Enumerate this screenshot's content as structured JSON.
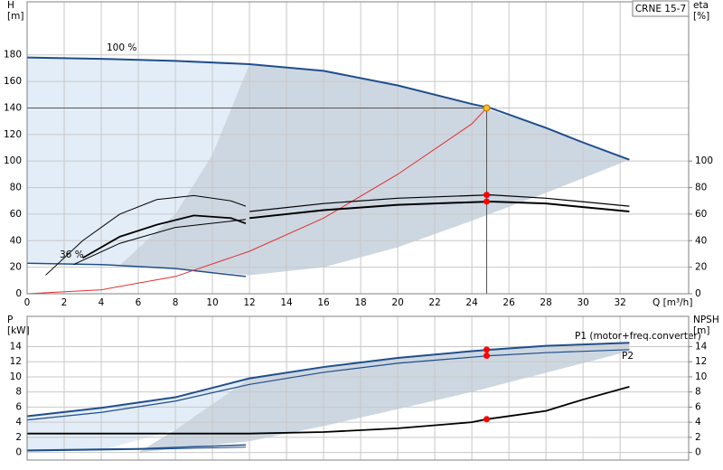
{
  "chart_data": [
    {
      "type": "line",
      "ylabel": [
        "H",
        "[m]"
      ],
      "y2label": [
        "eta",
        "[%]"
      ],
      "xlabel": "Q [m³/h]",
      "model": "CRNE 15-7",
      "xlim": [
        0,
        35.7
      ],
      "ylim": [
        0,
        220
      ],
      "y2lim": [
        0,
        220
      ],
      "xticks": [
        0,
        2,
        4,
        6,
        8,
        10,
        12,
        14,
        16,
        18,
        20,
        22,
        24,
        26,
        28,
        30,
        32
      ],
      "yticks": [
        0,
        20,
        40,
        60,
        80,
        100,
        120,
        140,
        160,
        180
      ],
      "y2ticks": [
        0,
        20,
        40,
        60,
        80,
        100
      ],
      "grid": true,
      "crosshair": true,
      "regions": [
        {
          "color": "#e3edf7",
          "x": [
            0,
            4,
            8,
            12,
            10,
            8,
            5,
            2,
            0
          ],
          "values": [
            178,
            177,
            175.5,
            173,
            105,
            60,
            21.5,
            23,
            23
          ]
        },
        {
          "color": "#cdd7e1",
          "x": [
            12,
            16,
            20,
            24,
            28,
            32.5,
            28,
            24,
            20,
            16,
            12,
            8,
            5,
            8,
            10,
            12
          ],
          "values": [
            173,
            168,
            157,
            143,
            125,
            101,
            76,
            55,
            35,
            20,
            14,
            19,
            21.5,
            60,
            105,
            173
          ]
        }
      ],
      "series": [
        {
          "name": "100 %",
          "color": "#1f4e8c",
          "width": 2,
          "x": [
            0,
            4,
            8,
            12,
            16,
            20,
            24,
            25,
            28,
            30,
            32.5
          ],
          "values": [
            178,
            177,
            175.5,
            173,
            168,
            157,
            143,
            140,
            125,
            114,
            101
          ]
        },
        {
          "name": "36 %",
          "color": "#1f4e8c",
          "width": 1.5,
          "x": [
            0,
            4,
            8,
            11.8
          ],
          "values": [
            23,
            22,
            19,
            13
          ]
        },
        {
          "color": "#e03030",
          "width": 1,
          "x": [
            0,
            4,
            8,
            12,
            16,
            20,
            24,
            24.8
          ],
          "values": [
            0,
            3,
            13,
            32,
            57,
            90,
            128,
            140
          ]
        },
        {
          "color": "#000000",
          "width": 1,
          "axis": "y2",
          "x": [
            1,
            3,
            5,
            7,
            9,
            11,
            11.8
          ],
          "values": [
            14,
            40,
            60,
            71,
            74,
            70,
            66
          ]
        },
        {
          "color": "#000000",
          "width": 1.8,
          "axis": "y2",
          "x": [
            3,
            5,
            7,
            9,
            11,
            11.8
          ],
          "values": [
            27,
            43,
            52,
            59,
            57,
            53
          ]
        },
        {
          "color": "#000000",
          "width": 1,
          "axis": "y2",
          "x": [
            2.5,
            5,
            8,
            11.8
          ],
          "values": [
            22,
            38,
            50,
            56
          ]
        },
        {
          "color": "#000000",
          "width": 1.2,
          "axis": "y2",
          "x": [
            12,
            16,
            20,
            24,
            25,
            28,
            32.5
          ],
          "values": [
            62,
            68,
            72,
            74,
            74.5,
            72,
            66
          ]
        },
        {
          "color": "#000000",
          "width": 2,
          "axis": "y2",
          "x": [
            12,
            16,
            20,
            24,
            25,
            28,
            32.5
          ],
          "values": [
            57,
            63,
            67,
            69,
            69.5,
            68,
            62
          ]
        }
      ],
      "points": [
        {
          "x": 24.8,
          "y": 140,
          "color": "#f7c21b"
        },
        {
          "x": 24.8,
          "y": 74.5,
          "color": "#ff0000",
          "axis": "y2"
        },
        {
          "x": 24.8,
          "y": 69.5,
          "color": "#ff0000",
          "axis": "y2"
        }
      ]
    },
    {
      "type": "line",
      "ylabel": [
        "P",
        "[kW]"
      ],
      "y2label": [
        "NPSH",
        "[m]"
      ],
      "xlim": [
        0,
        35.7
      ],
      "ylim": [
        -1,
        18
      ],
      "y2lim": [
        -1,
        18
      ],
      "xticks": [
        0,
        2,
        4,
        6,
        8,
        10,
        12,
        14,
        16,
        18,
        20,
        22,
        24,
        26,
        28,
        30,
        32
      ],
      "yticks": [
        0,
        2,
        4,
        6,
        8,
        10,
        12,
        14
      ],
      "y2ticks": [
        0,
        2,
        4,
        6,
        8,
        10,
        12,
        14
      ],
      "grid": true,
      "regions": [
        {
          "color": "#e3edf7",
          "x": [
            0,
            4,
            8,
            12,
            8,
            4,
            0
          ],
          "values": [
            4.8,
            5.9,
            7.3,
            9.8,
            3,
            0.3,
            0.3
          ]
        },
        {
          "color": "#cdd7e1",
          "x": [
            12,
            16,
            20,
            24,
            28,
            32.5,
            32.5,
            24,
            16,
            12,
            6,
            8,
            12
          ],
          "values": [
            9.8,
            11.3,
            12.5,
            13.4,
            14.1,
            14.5,
            13.4,
            8,
            3.5,
            1.5,
            0,
            3,
            9.8
          ]
        }
      ],
      "series": [
        {
          "name": "P1 (motor+freq.converter)",
          "color": "#1f4e8c",
          "width": 2,
          "x": [
            0,
            4,
            8,
            12,
            16,
            20,
            24,
            25,
            28,
            32.5
          ],
          "values": [
            4.8,
            5.9,
            7.3,
            9.8,
            11.3,
            12.5,
            13.4,
            13.6,
            14.1,
            14.5
          ]
        },
        {
          "name": "P2",
          "color": "#1f4e8c",
          "width": 1.2,
          "x": [
            0,
            4,
            8,
            12,
            16,
            20,
            24,
            25,
            28,
            32.5
          ],
          "values": [
            4.3,
            5.3,
            6.8,
            9,
            10.6,
            11.8,
            12.6,
            12.8,
            13.2,
            13.6
          ]
        },
        {
          "color": "#1f4e8c",
          "width": 1.5,
          "x": [
            0,
            6,
            11.8
          ],
          "values": [
            0.3,
            0.5,
            1
          ]
        },
        {
          "color": "#1f4e8c",
          "width": 1,
          "x": [
            0,
            6,
            11.8
          ],
          "values": [
            0.2,
            0.4,
            0.7
          ]
        },
        {
          "color": "#000000",
          "width": 1.8,
          "axis": "y2",
          "x": [
            0,
            12,
            16,
            20,
            24,
            24.8,
            28,
            30,
            32.5
          ],
          "values": [
            2.5,
            2.5,
            2.7,
            3.2,
            4,
            4.4,
            5.5,
            7,
            8.7
          ]
        }
      ],
      "points": [
        {
          "x": 24.8,
          "y": 13.6,
          "color": "#ff0000"
        },
        {
          "x": 24.8,
          "y": 12.8,
          "color": "#ff0000"
        },
        {
          "x": 24.8,
          "y": 4.4,
          "color": "#ff0000",
          "axis": "y2"
        }
      ]
    }
  ]
}
